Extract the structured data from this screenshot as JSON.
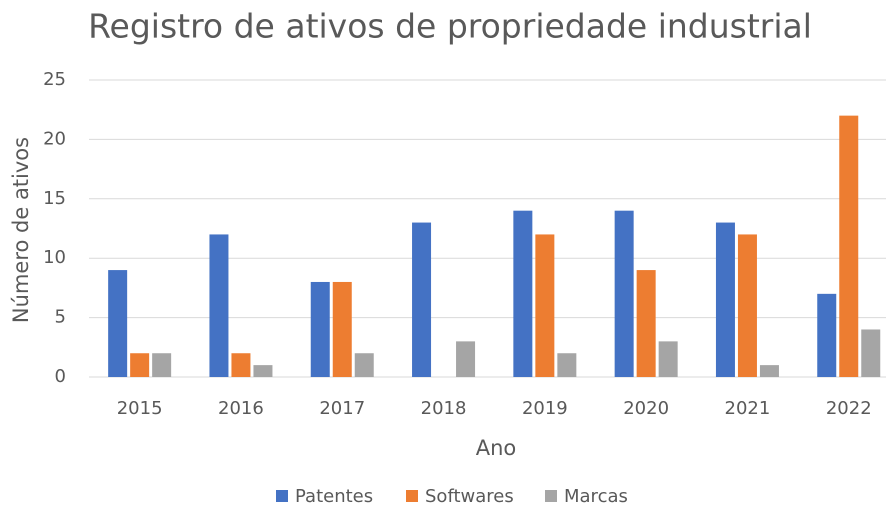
{
  "chart_data": {
    "type": "bar",
    "title": "Registro de ativos de propriedade industrial",
    "x_label": "Ano",
    "y_label": "Número de ativos",
    "categories": [
      "2015",
      "2016",
      "2017",
      "2018",
      "2019",
      "2020",
      "2021",
      "2022"
    ],
    "series": [
      {
        "name": "Patentes",
        "color": "#4472c4",
        "values": [
          9,
          12,
          8,
          13,
          14,
          14,
          13,
          7
        ]
      },
      {
        "name": "Softwares",
        "color": "#ed7d31",
        "values": [
          2,
          2,
          8,
          0,
          12,
          9,
          12,
          22
        ]
      },
      {
        "name": "Marcas",
        "color": "#a5a5a5",
        "values": [
          2,
          1,
          2,
          3,
          2,
          3,
          1,
          4
        ]
      }
    ],
    "ylim": [
      0,
      25
    ],
    "yticks": [
      0,
      5,
      10,
      15,
      20,
      25
    ],
    "grid": true,
    "legend": "bottom"
  }
}
